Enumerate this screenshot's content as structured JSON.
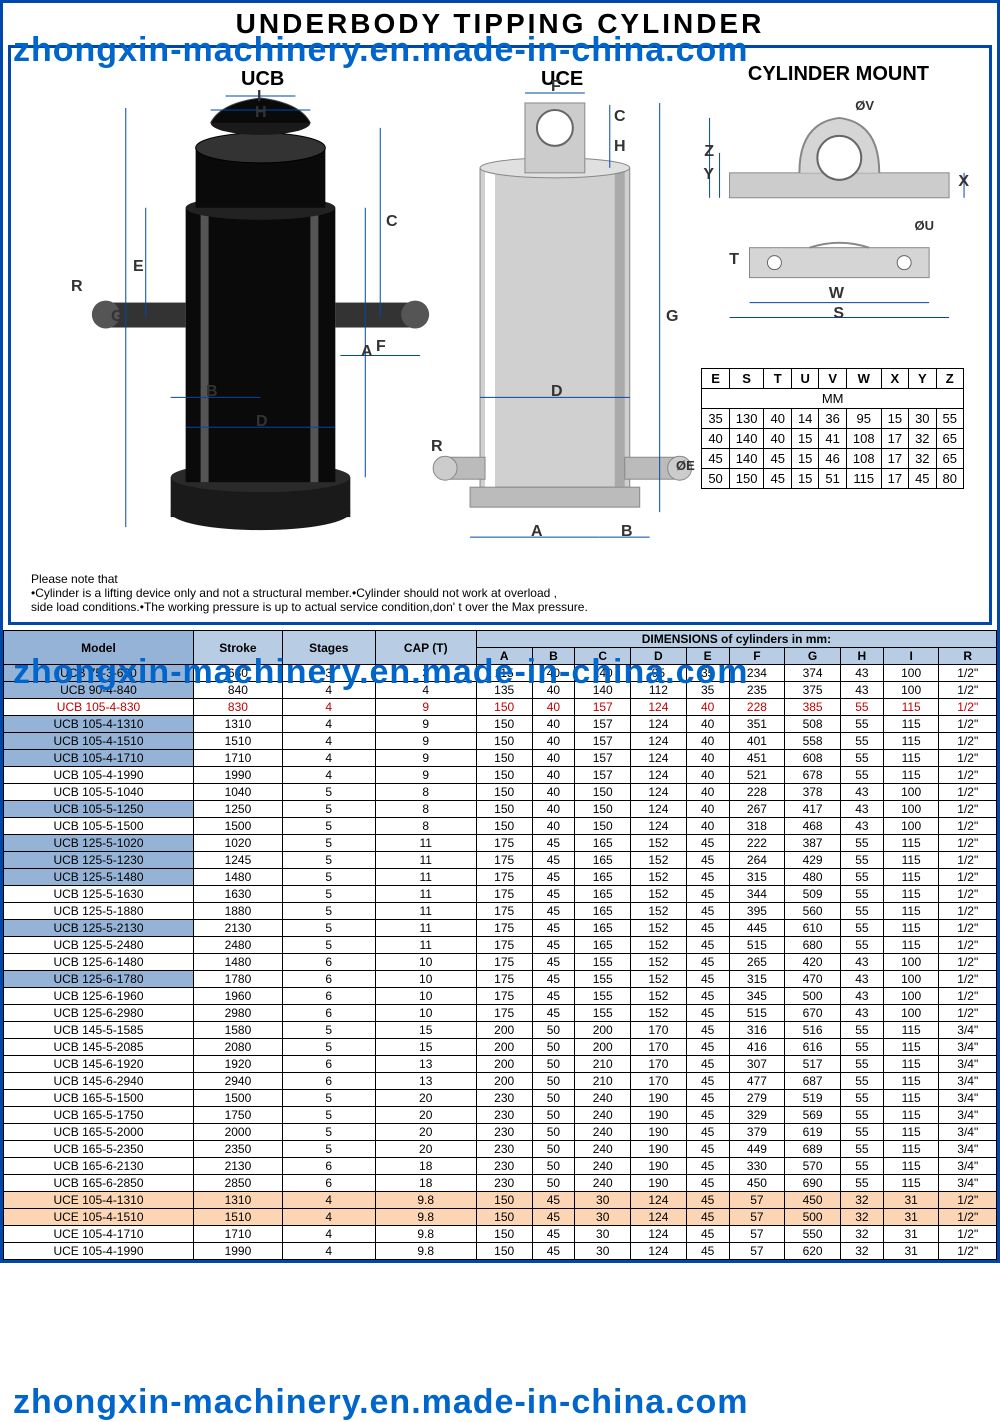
{
  "title": "UNDERBODY  TIPPING  CYLINDER",
  "watermark": "zhongxin-machinery.en.made-in-china.com",
  "labels": {
    "ucb": "UCB",
    "uce": "UCE",
    "cylinder_mount": "CYLINDER MOUNT"
  },
  "dim_letters": {
    "a": "A",
    "b": "B",
    "c": "C",
    "d": "D",
    "e": "E",
    "f": "F",
    "g": "G",
    "h": "H",
    "i": "I",
    "r": "R",
    "s": "S",
    "t": "T",
    "u": "U",
    "v": "V",
    "w": "W",
    "x": "X",
    "y": "Y",
    "z": "Z",
    "phie": "ØE",
    "phiv": "ØV",
    "phiu": "ØU"
  },
  "notes": {
    "heading": "Please note that",
    "line1": "•Cylinder is a lifting device only and not a structural member.•Cylinder should not work at overload ,",
    "line2": "side load conditions.•The working pressure is up to actual service condition,don' t over the Max pressure."
  },
  "mount_table": {
    "headers": [
      "E",
      "S",
      "T",
      "U",
      "V",
      "W",
      "X",
      "Y",
      "Z"
    ],
    "unit": "MM",
    "rows": [
      [
        "35",
        "130",
        "40",
        "14",
        "36",
        "95",
        "15",
        "30",
        "55"
      ],
      [
        "40",
        "140",
        "40",
        "15",
        "41",
        "108",
        "17",
        "32",
        "65"
      ],
      [
        "45",
        "140",
        "45",
        "15",
        "46",
        "108",
        "17",
        "32",
        "65"
      ],
      [
        "50",
        "150",
        "45",
        "15",
        "51",
        "115",
        "17",
        "45",
        "80"
      ]
    ]
  },
  "main_table": {
    "top_headers": [
      "Model",
      "Stroke",
      "Stages",
      "CAP (T)"
    ],
    "dim_header": "DIMENSIONS of cylinders in mm:",
    "dim_cols": [
      "A",
      "B",
      "C",
      "D",
      "E",
      "F",
      "G",
      "H",
      "I",
      "R"
    ],
    "rows": [
      {
        "style": "blue",
        "cells": [
          "UCB 75-3-630",
          "630",
          "3",
          "3",
          "115",
          "40",
          "140",
          "95",
          "35",
          "234",
          "374",
          "43",
          "100",
          "1/2\""
        ]
      },
      {
        "style": "blue",
        "cells": [
          "UCB 90-4-840",
          "840",
          "4",
          "4",
          "135",
          "40",
          "140",
          "112",
          "35",
          "235",
          "375",
          "43",
          "100",
          "1/2\""
        ]
      },
      {
        "style": "red",
        "cells": [
          "UCB 105-4-830",
          "830",
          "4",
          "9",
          "150",
          "40",
          "157",
          "124",
          "40",
          "228",
          "385",
          "55",
          "115",
          "1/2\""
        ]
      },
      {
        "style": "blue",
        "cells": [
          "UCB 105-4-1310",
          "1310",
          "4",
          "9",
          "150",
          "40",
          "157",
          "124",
          "40",
          "351",
          "508",
          "55",
          "115",
          "1/2\""
        ]
      },
      {
        "style": "blue",
        "cells": [
          "UCB 105-4-1510",
          "1510",
          "4",
          "9",
          "150",
          "40",
          "157",
          "124",
          "40",
          "401",
          "558",
          "55",
          "115",
          "1/2\""
        ]
      },
      {
        "style": "blue",
        "cells": [
          "UCB 105-4-1710",
          "1710",
          "4",
          "9",
          "150",
          "40",
          "157",
          "124",
          "40",
          "451",
          "608",
          "55",
          "115",
          "1/2\""
        ]
      },
      {
        "style": "",
        "cells": [
          "UCB 105-4-1990",
          "1990",
          "4",
          "9",
          "150",
          "40",
          "157",
          "124",
          "40",
          "521",
          "678",
          "55",
          "115",
          "1/2\""
        ]
      },
      {
        "style": "",
        "cells": [
          "UCB 105-5-1040",
          "1040",
          "5",
          "8",
          "150",
          "40",
          "150",
          "124",
          "40",
          "228",
          "378",
          "43",
          "100",
          "1/2\""
        ]
      },
      {
        "style": "blue",
        "cells": [
          "UCB 105-5-1250",
          "1250",
          "5",
          "8",
          "150",
          "40",
          "150",
          "124",
          "40",
          "267",
          "417",
          "43",
          "100",
          "1/2\""
        ]
      },
      {
        "style": "",
        "cells": [
          "UCB 105-5-1500",
          "1500",
          "5",
          "8",
          "150",
          "40",
          "150",
          "124",
          "40",
          "318",
          "468",
          "43",
          "100",
          "1/2\""
        ]
      },
      {
        "style": "blue",
        "cells": [
          "UCB 125-5-1020",
          "1020",
          "5",
          "11",
          "175",
          "45",
          "165",
          "152",
          "45",
          "222",
          "387",
          "55",
          "115",
          "1/2\""
        ]
      },
      {
        "style": "blue",
        "cells": [
          "UCB 125-5-1230",
          "1245",
          "5",
          "11",
          "175",
          "45",
          "165",
          "152",
          "45",
          "264",
          "429",
          "55",
          "115",
          "1/2\""
        ]
      },
      {
        "style": "blue",
        "cells": [
          "UCB 125-5-1480",
          "1480",
          "5",
          "11",
          "175",
          "45",
          "165",
          "152",
          "45",
          "315",
          "480",
          "55",
          "115",
          "1/2\""
        ]
      },
      {
        "style": "",
        "cells": [
          "UCB 125-5-1630",
          "1630",
          "5",
          "11",
          "175",
          "45",
          "165",
          "152",
          "45",
          "344",
          "509",
          "55",
          "115",
          "1/2\""
        ]
      },
      {
        "style": "",
        "cells": [
          "UCB 125-5-1880",
          "1880",
          "5",
          "11",
          "175",
          "45",
          "165",
          "152",
          "45",
          "395",
          "560",
          "55",
          "115",
          "1/2\""
        ]
      },
      {
        "style": "blue",
        "cells": [
          "UCB 125-5-2130",
          "2130",
          "5",
          "11",
          "175",
          "45",
          "165",
          "152",
          "45",
          "445",
          "610",
          "55",
          "115",
          "1/2\""
        ]
      },
      {
        "style": "",
        "cells": [
          "UCB 125-5-2480",
          "2480",
          "5",
          "11",
          "175",
          "45",
          "165",
          "152",
          "45",
          "515",
          "680",
          "55",
          "115",
          "1/2\""
        ]
      },
      {
        "style": "",
        "cells": [
          "UCB 125-6-1480",
          "1480",
          "6",
          "10",
          "175",
          "45",
          "155",
          "152",
          "45",
          "265",
          "420",
          "43",
          "100",
          "1/2\""
        ]
      },
      {
        "style": "blue",
        "cells": [
          "UCB 125-6-1780",
          "1780",
          "6",
          "10",
          "175",
          "45",
          "155",
          "152",
          "45",
          "315",
          "470",
          "43",
          "100",
          "1/2\""
        ]
      },
      {
        "style": "",
        "cells": [
          "UCB 125-6-1960",
          "1960",
          "6",
          "10",
          "175",
          "45",
          "155",
          "152",
          "45",
          "345",
          "500",
          "43",
          "100",
          "1/2\""
        ]
      },
      {
        "style": "",
        "cells": [
          "UCB 125-6-2980",
          "2980",
          "6",
          "10",
          "175",
          "45",
          "155",
          "152",
          "45",
          "515",
          "670",
          "43",
          "100",
          "1/2\""
        ]
      },
      {
        "style": "",
        "cells": [
          "UCB 145-5-1585",
          "1580",
          "5",
          "15",
          "200",
          "50",
          "200",
          "170",
          "45",
          "316",
          "516",
          "55",
          "115",
          "3/4\""
        ]
      },
      {
        "style": "",
        "cells": [
          "UCB 145-5-2085",
          "2080",
          "5",
          "15",
          "200",
          "50",
          "200",
          "170",
          "45",
          "416",
          "616",
          "55",
          "115",
          "3/4\""
        ]
      },
      {
        "style": "",
        "cells": [
          "UCB 145-6-1920",
          "1920",
          "6",
          "13",
          "200",
          "50",
          "210",
          "170",
          "45",
          "307",
          "517",
          "55",
          "115",
          "3/4\""
        ]
      },
      {
        "style": "",
        "cells": [
          "UCB 145-6-2940",
          "2940",
          "6",
          "13",
          "200",
          "50",
          "210",
          "170",
          "45",
          "477",
          "687",
          "55",
          "115",
          "3/4\""
        ]
      },
      {
        "style": "",
        "cells": [
          "UCB 165-5-1500",
          "1500",
          "5",
          "20",
          "230",
          "50",
          "240",
          "190",
          "45",
          "279",
          "519",
          "55",
          "115",
          "3/4\""
        ]
      },
      {
        "style": "",
        "cells": [
          "UCB 165-5-1750",
          "1750",
          "5",
          "20",
          "230",
          "50",
          "240",
          "190",
          "45",
          "329",
          "569",
          "55",
          "115",
          "3/4\""
        ]
      },
      {
        "style": "",
        "cells": [
          "UCB 165-5-2000",
          "2000",
          "5",
          "20",
          "230",
          "50",
          "240",
          "190",
          "45",
          "379",
          "619",
          "55",
          "115",
          "3/4\""
        ]
      },
      {
        "style": "",
        "cells": [
          "UCB 165-5-2350",
          "2350",
          "5",
          "20",
          "230",
          "50",
          "240",
          "190",
          "45",
          "449",
          "689",
          "55",
          "115",
          "3/4\""
        ]
      },
      {
        "style": "",
        "cells": [
          "UCB 165-6-2130",
          "2130",
          "6",
          "18",
          "230",
          "50",
          "240",
          "190",
          "45",
          "330",
          "570",
          "55",
          "115",
          "3/4\""
        ]
      },
      {
        "style": "",
        "cells": [
          "UCB 165-6-2850",
          "2850",
          "6",
          "18",
          "230",
          "50",
          "240",
          "190",
          "45",
          "450",
          "690",
          "55",
          "115",
          "3/4\""
        ]
      },
      {
        "style": "orange",
        "cells": [
          "UCE 105-4-1310",
          "1310",
          "4",
          "9.8",
          "150",
          "45",
          "30",
          "124",
          "45",
          "57",
          "450",
          "32",
          "31",
          "1/2\""
        ]
      },
      {
        "style": "orange",
        "cells": [
          "UCE 105-4-1510",
          "1510",
          "4",
          "9.8",
          "150",
          "45",
          "30",
          "124",
          "45",
          "57",
          "500",
          "32",
          "31",
          "1/2\""
        ]
      },
      {
        "style": "",
        "cells": [
          "UCE 105-4-1710",
          "1710",
          "4",
          "9.8",
          "150",
          "45",
          "30",
          "124",
          "45",
          "57",
          "550",
          "32",
          "31",
          "1/2\""
        ]
      },
      {
        "style": "",
        "cells": [
          "UCE 105-4-1990",
          "1990",
          "4",
          "9.8",
          "150",
          "45",
          "30",
          "124",
          "45",
          "57",
          "620",
          "32",
          "31",
          "1/2\""
        ]
      }
    ]
  },
  "colors": {
    "border": "#0047ab",
    "watermark": "#0066cc",
    "blue_header": "#b8cce4",
    "blue_cell": "#95b3d7",
    "blue_row": "#dce6f1",
    "red_text": "#c00000",
    "orange_row": "#fcd5b4"
  }
}
